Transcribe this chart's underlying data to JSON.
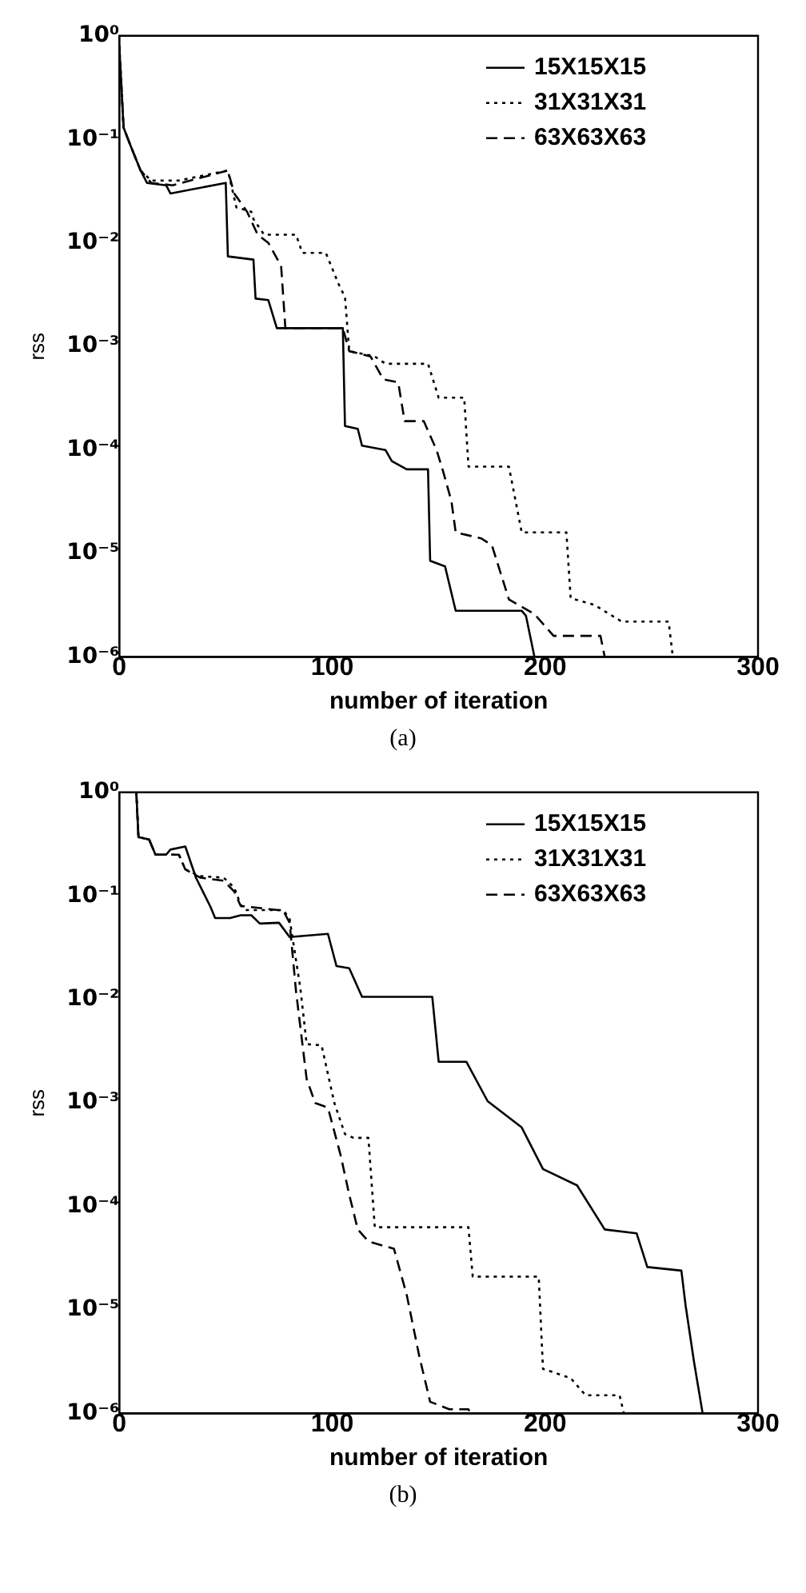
{
  "chart_data": [
    {
      "type": "line",
      "xlabel": "number of iteration",
      "ylabel": "rss",
      "annotations": [
        "(a)"
      ],
      "log": "y",
      "grid": false,
      "legend": "top right",
      "xlim": [
        0,
        300
      ],
      "xticks": [
        0,
        100,
        200,
        300
      ],
      "ylim": [
        1e-06,
        1
      ],
      "yticks": [
        {
          "value": 1,
          "label": "10⁰"
        },
        {
          "value": 0.1,
          "label": "10⁻¹"
        },
        {
          "value": 0.01,
          "label": "10⁻²"
        },
        {
          "value": 0.001,
          "label": "10⁻³"
        },
        {
          "value": 0.0001,
          "label": "10⁻⁴"
        },
        {
          "value": 1e-05,
          "label": "10⁻⁵"
        },
        {
          "value": 1e-06,
          "label": "10⁻⁶"
        }
      ],
      "series": [
        {
          "name": "15X15X15",
          "color": "#000000",
          "line_style": "solid",
          "x": [
            0,
            2,
            5,
            10,
            13,
            22,
            24,
            50,
            51,
            63,
            64,
            70,
            74,
            105,
            106,
            112,
            114,
            125,
            128,
            135,
            145,
            146,
            153,
            158,
            189,
            191,
            195
          ],
          "values": [
            0.8,
            0.13,
            0.09,
            0.05,
            0.038,
            0.036,
            0.03,
            0.038,
            0.0074,
            0.0069,
            0.0029,
            0.0028,
            0.0015,
            0.0015,
            0.00017,
            0.00016,
            0.00011,
            0.0001,
            7.8e-05,
            6.5e-05,
            6.5e-05,
            8.5e-06,
            7.5e-06,
            2.8e-06,
            2.8e-06,
            2.5e-06,
            1e-06
          ]
        },
        {
          "name": "31X31X31",
          "color": "#000000",
          "line_style": "dotted",
          "x": [
            0,
            2,
            5,
            10,
            15,
            28,
            51,
            55,
            62,
            63,
            68,
            83,
            86,
            97,
            103,
            106,
            108,
            120,
            125,
            145,
            150,
            162,
            164,
            183,
            189,
            210,
            212,
            223,
            236,
            258,
            260
          ],
          "values": [
            0.8,
            0.13,
            0.09,
            0.05,
            0.04,
            0.04,
            0.05,
            0.022,
            0.02,
            0.017,
            0.012,
            0.012,
            0.008,
            0.008,
            0.004,
            0.003,
            0.0009,
            0.0008,
            0.00068,
            0.00068,
            0.00032,
            0.00032,
            6.9e-05,
            6.9e-05,
            1.6e-05,
            1.6e-05,
            3.7e-06,
            3.2e-06,
            2.2e-06,
            2.2e-06,
            1e-06
          ]
        },
        {
          "name": "63X63X63",
          "color": "#000000",
          "line_style": "dashed",
          "x": [
            0,
            2,
            5,
            10,
            15,
            25,
            51,
            54,
            60,
            65,
            70,
            76,
            78,
            105,
            108,
            118,
            124,
            131,
            134,
            143,
            149,
            152,
            156,
            158,
            170,
            175,
            183,
            195,
            204,
            226,
            228
          ],
          "values": [
            0.8,
            0.13,
            0.09,
            0.05,
            0.038,
            0.036,
            0.05,
            0.03,
            0.02,
            0.012,
            0.01,
            0.006,
            0.0015,
            0.0015,
            0.0009,
            0.0008,
            0.00048,
            0.00045,
            0.00019,
            0.00019,
            0.0001,
            6.3e-05,
            3.2e-05,
            1.6e-05,
            1.4e-05,
            1.2e-05,
            3.6e-06,
            2.6e-06,
            1.6e-06,
            1.6e-06,
            1e-06
          ]
        }
      ]
    },
    {
      "type": "line",
      "xlabel": "number of iteration",
      "ylabel": "rss",
      "annotations": [
        "(b)"
      ],
      "log": "y",
      "grid": false,
      "legend": "top right",
      "xlim": [
        0,
        300
      ],
      "xticks": [
        0,
        100,
        200,
        300
      ],
      "ylim": [
        1e-06,
        1
      ],
      "yticks": [
        {
          "value": 1,
          "label": "10⁰"
        },
        {
          "value": 0.1,
          "label": "10⁻¹"
        },
        {
          "value": 0.01,
          "label": "10⁻²"
        },
        {
          "value": 0.001,
          "label": "10⁻³"
        },
        {
          "value": 0.0001,
          "label": "10⁻⁴"
        },
        {
          "value": 1e-05,
          "label": "10⁻⁵"
        },
        {
          "value": 1e-06,
          "label": "10⁻⁶"
        }
      ],
      "series": [
        {
          "name": "15X15X15",
          "color": "#000000",
          "line_style": "solid",
          "x": [
            8,
            9,
            14,
            17,
            22,
            24,
            31,
            36,
            43,
            45,
            52,
            57,
            62,
            66,
            75,
            80,
            98,
            102,
            108,
            114,
            147,
            150,
            163,
            173,
            189,
            199,
            215,
            228,
            243,
            248,
            264,
            266,
            270,
            274
          ],
          "values": [
            1,
            0.37,
            0.35,
            0.25,
            0.25,
            0.28,
            0.3,
            0.15,
            0.077,
            0.061,
            0.061,
            0.065,
            0.065,
            0.054,
            0.055,
            0.04,
            0.043,
            0.021,
            0.02,
            0.0106,
            0.0106,
            0.0025,
            0.0025,
            0.00104,
            0.00058,
            0.00023,
            0.00016,
            6e-05,
            5.5e-05,
            2.6e-05,
            2.4e-05,
            1.1e-05,
            3.1e-06,
            1e-06
          ]
        },
        {
          "name": "31X31X31",
          "color": "#000000",
          "line_style": "dotted",
          "x": [
            8,
            9,
            14,
            17,
            22,
            28,
            31,
            38,
            49,
            54,
            57,
            59,
            77,
            80,
            85,
            88,
            95,
            101,
            106,
            110,
            117,
            120,
            164,
            166,
            197,
            199,
            212,
            219,
            235,
            237
          ],
          "values": [
            1,
            0.37,
            0.35,
            0.25,
            0.25,
            0.25,
            0.18,
            0.155,
            0.15,
            0.12,
            0.082,
            0.073,
            0.073,
            0.06,
            0.013,
            0.0037,
            0.0036,
            0.001,
            0.0005,
            0.00046,
            0.00046,
            6.3e-05,
            6.3e-05,
            2.1e-05,
            2.1e-05,
            2.7e-06,
            2.2e-06,
            1.5e-06,
            1.5e-06,
            1e-06
          ]
        },
        {
          "name": "63X63X63",
          "color": "#000000",
          "line_style": "dashed",
          "x": [
            8,
            9,
            14,
            17,
            22,
            28,
            31,
            38,
            49,
            54,
            57,
            77,
            80,
            83,
            88,
            92,
            98,
            104,
            108,
            112,
            117,
            129,
            135,
            141,
            146,
            155,
            164,
            165
          ],
          "values": [
            1,
            0.37,
            0.35,
            0.25,
            0.25,
            0.25,
            0.18,
            0.15,
            0.14,
            0.11,
            0.08,
            0.072,
            0.055,
            0.012,
            0.0017,
            0.001,
            0.0009,
            0.00031,
            0.00013,
            6e-05,
            4.6e-05,
            3.9e-05,
            1.4e-05,
            3.5e-06,
            1.3e-06,
            1.1e-06,
            1.1e-06,
            1e-06
          ]
        }
      ]
    }
  ]
}
